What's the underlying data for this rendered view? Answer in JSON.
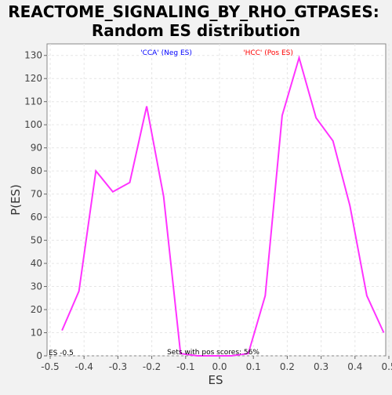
{
  "chart_data": {
    "type": "line",
    "title_line1": "REACTOME_SIGNALING_BY_RHO_GTPASES:",
    "title_line2": "Random ES distribution",
    "xlabel": "ES",
    "ylabel": "P(ES)",
    "xlim": [
      -0.5,
      0.5
    ],
    "ylim": [
      0,
      135
    ],
    "xticks": [
      "-0.5",
      "-0.4",
      "-0.3",
      "-0.2",
      "-0.1",
      "0.0",
      "0.1",
      "0.2",
      "0.3",
      "0.4",
      "0.5"
    ],
    "yticks": [
      "0",
      "10",
      "20",
      "30",
      "40",
      "50",
      "60",
      "70",
      "80",
      "90",
      "100",
      "110",
      "120",
      "130"
    ],
    "grid": true,
    "neg_label": "'CCA' (Neg ES)",
    "pos_label": "'HCC' (Pos ES)",
    "es_label": "ES -0.5",
    "pos_scores_label": "Sets with pos scores: 56%",
    "line_color": "#ff33ff",
    "neg_color": "#0000ff",
    "pos_color": "#ff0000",
    "series": [
      {
        "x": [
          -0.465,
          -0.415,
          -0.365,
          -0.315,
          -0.265,
          -0.215,
          -0.165,
          -0.115,
          -0.065,
          -0.015,
          0.035,
          0.085,
          0.135,
          0.185,
          0.235,
          0.285,
          0.335,
          0.385,
          0.435,
          0.485
        ],
        "y": [
          11,
          28,
          80,
          71,
          75,
          108,
          69,
          1,
          0,
          0,
          0,
          1,
          26,
          104,
          129,
          103,
          93,
          65,
          26,
          10
        ]
      }
    ]
  }
}
